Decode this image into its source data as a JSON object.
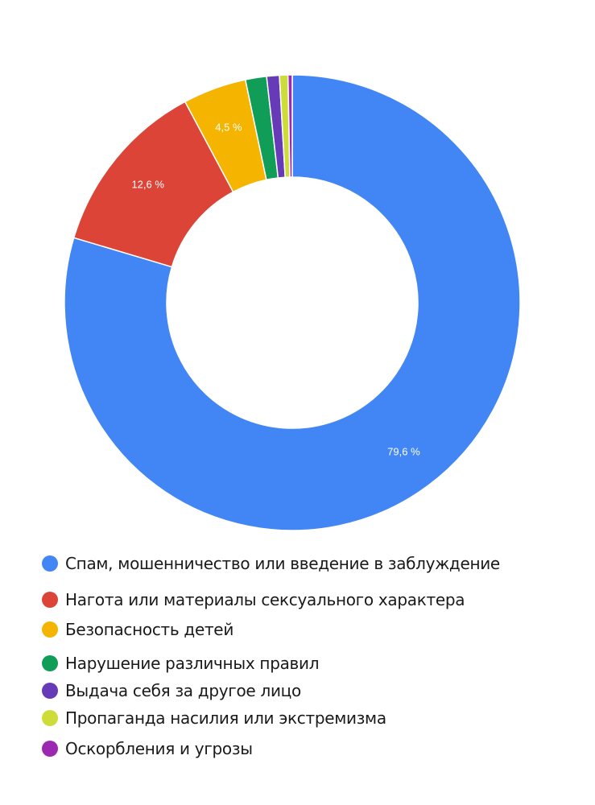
{
  "chart_data": {
    "type": "pie",
    "subtype": "donut",
    "title": "",
    "legend_position": "bottom",
    "categories": [
      "Спам, мошенничество или введение в заблуждение",
      "Нагота или материалы сексуального характера",
      "Безопасность детей",
      "Нарушение различных правил",
      "Выдача себя за другое лицо",
      "Пропаганда насилия или экстремизма",
      "Оскорбления и угрозы"
    ],
    "values": [
      79.6,
      12.6,
      4.5,
      1.5,
      0.9,
      0.6,
      0.3
    ],
    "unit": "%",
    "colors": [
      "#4285f4",
      "#db4437",
      "#f4b400",
      "#0f9d58",
      "#673ab7",
      "#cddc39",
      "#9c27b0"
    ],
    "data_labels": [
      "79,6 %",
      "12,6 %",
      "4,5 %",
      "",
      "",
      "",
      ""
    ]
  },
  "legend": {
    "items": [
      {
        "label": "Спам, мошенничество или введение в заблуждение",
        "color": "#4285f4"
      },
      {
        "label": "Нагота или материалы сексуального характера",
        "color": "#db4437"
      },
      {
        "label": "Безопасность детей",
        "color": "#f4b400"
      },
      {
        "label": "Нарушение различных правил",
        "color": "#0f9d58"
      },
      {
        "label": "Выдача себя за другое лицо",
        "color": "#673ab7"
      },
      {
        "label": "Пропаганда насилия или экстремизма",
        "color": "#cddc39"
      },
      {
        "label": "Оскорбления и угрозы",
        "color": "#9c27b0"
      }
    ]
  }
}
